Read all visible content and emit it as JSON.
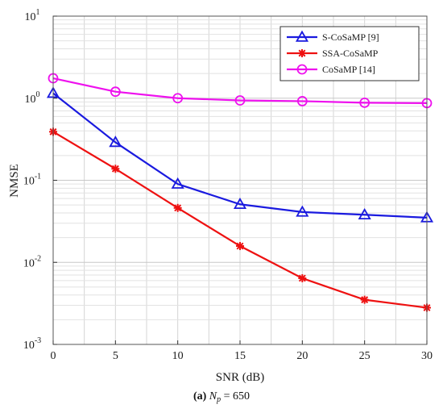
{
  "chart_data": {
    "type": "line",
    "title": "",
    "xlabel": "SNR (dB)",
    "ylabel": "NMSE",
    "yscale": "log",
    "xlim": [
      0,
      30
    ],
    "ylim": [
      0.001,
      10
    ],
    "grid": true,
    "legend_position": "top-right",
    "x": [
      0,
      5,
      10,
      15,
      20,
      25,
      30
    ],
    "x_tick_labels": [
      "0",
      "5",
      "10",
      "15",
      "20",
      "25",
      "30"
    ],
    "y_ticks": [
      {
        "value": 0.001,
        "base": "10",
        "exp": "-3"
      },
      {
        "value": 0.01,
        "base": "10",
        "exp": "-2"
      },
      {
        "value": 0.1,
        "base": "10",
        "exp": "-1"
      },
      {
        "value": 1,
        "base": "10",
        "exp": "0"
      },
      {
        "value": 10,
        "base": "10",
        "exp": "1"
      }
    ],
    "series": [
      {
        "name": "S-CoSaMP [9]",
        "color": "#1a1adf",
        "marker": "triangle",
        "values": [
          1.15,
          0.29,
          0.09,
          0.051,
          0.041,
          0.038,
          0.035
        ]
      },
      {
        "name": "SSA-CoSaMP",
        "color": "#ee1111",
        "marker": "star",
        "values": [
          0.39,
          0.138,
          0.046,
          0.0158,
          0.0064,
          0.0035,
          0.0028
        ]
      },
      {
        "name": "CoSaMP [14]",
        "color": "#ee11ee",
        "marker": "circle",
        "values": [
          1.75,
          1.2,
          1.0,
          0.94,
          0.92,
          0.88,
          0.87
        ]
      }
    ]
  },
  "caption": {
    "label": "(a)",
    "math_symbol": "N",
    "math_subscript": "p",
    "math_rest": " = 650"
  }
}
